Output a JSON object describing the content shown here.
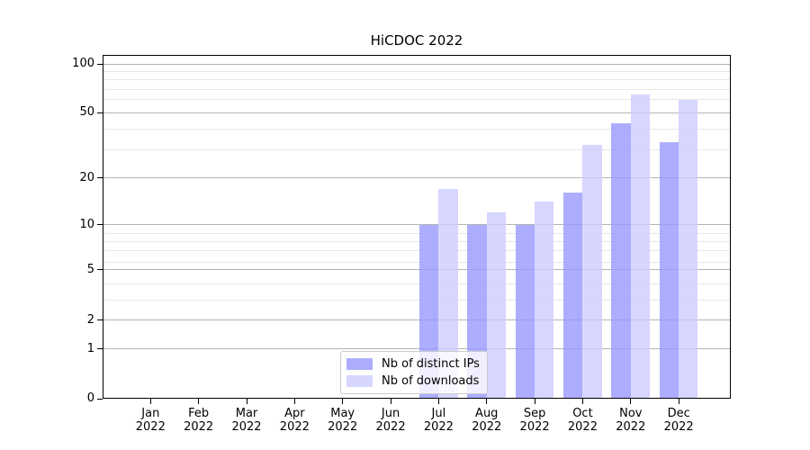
{
  "title": "HiCDOC 2022",
  "chart_data": {
    "type": "bar",
    "title": "HiCDOC 2022",
    "xlabel": "",
    "ylabel": "",
    "categories": [
      "Jan",
      "Feb",
      "Mar",
      "Apr",
      "May",
      "Jun",
      "Jul",
      "Aug",
      "Sep",
      "Oct",
      "Nov",
      "Dec"
    ],
    "category_year": "2022",
    "series": [
      {
        "name": "Nb of distinct IPs",
        "color": "rgba(153,153,255,0.8)",
        "values": [
          0,
          0,
          0,
          0,
          0,
          0,
          10,
          10,
          10,
          16,
          43,
          33
        ]
      },
      {
        "name": "Nb of downloads",
        "color": "rgba(204,204,255,0.8)",
        "values": [
          0,
          0,
          0,
          0,
          0,
          0,
          17,
          12,
          14,
          32,
          65,
          60
        ]
      }
    ],
    "yscale": "log-like (compressed below 10, linear 0-1)",
    "ylim": [
      0,
      114
    ],
    "y_major_ticks": [
      0,
      1,
      2,
      5,
      10,
      20,
      50,
      100
    ],
    "y_minor_gridlines": [
      3,
      4,
      6,
      7,
      8,
      9,
      30,
      40,
      60,
      70,
      80,
      90
    ],
    "grid": true,
    "legend_position": "lower center"
  },
  "colors": {
    "bar_distinct_ips": "#9999ff",
    "bar_downloads": "#ccccff",
    "grid_major": "#b4b4b4",
    "grid_minor": "#e8e8e8",
    "spine": "#000000"
  }
}
